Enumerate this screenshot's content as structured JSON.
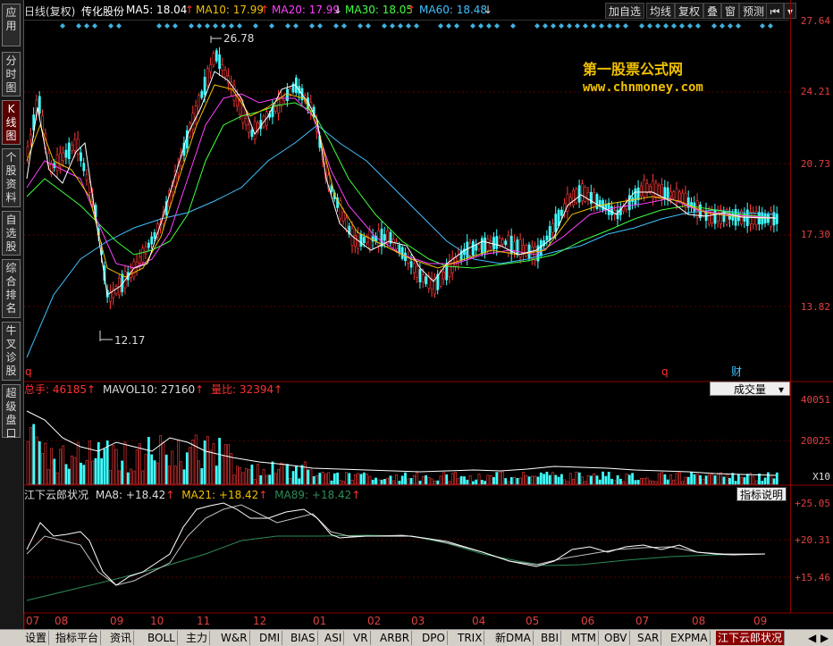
{
  "sidebar": {
    "items": [
      {
        "label": "应用",
        "active": false
      },
      {
        "label": "分时图",
        "active": false
      },
      {
        "label": "K线图",
        "active": true
      },
      {
        "label": "个股资料",
        "active": false
      },
      {
        "label": "自选股",
        "active": false
      },
      {
        "label": "综合排名",
        "active": false
      },
      {
        "label": "牛叉诊股",
        "active": false
      },
      {
        "label": "超级盘口",
        "active": false
      }
    ]
  },
  "header": {
    "chart_mode": "日线(复权)",
    "stock_name": "传化股份",
    "ma5": "MA5: 18.04",
    "ma10": "MA10: 17.99",
    "ma20": "MA20: 17.99",
    "ma30": "MA30: 18.05",
    "ma60": "MA60: 18.48",
    "buttons": [
      "加自选",
      "均线",
      "复权",
      "叠",
      "窗",
      "预测"
    ],
    "colors": {
      "ma5": "#ffffff",
      "ma10": "#f0c000",
      "ma20": "#ff40ff",
      "ma30": "#40ff40",
      "ma60": "#40c0ff",
      "up_arrow": "#ff3030"
    }
  },
  "price_axis": [
    "27.64",
    "24.21",
    "20.73",
    "17.30",
    "13.82"
  ],
  "price_annotations": {
    "high": "26.78",
    "low": "12.17"
  },
  "markers": {
    "q1": "q",
    "q2": "q",
    "cai": "财"
  },
  "watermark": {
    "line1": "第一股票公式网",
    "line2": "www.chnmoney.com"
  },
  "volume_panel": {
    "total": "总手: 46185",
    "mavol10": "MAVOL10: 27160",
    "liangbi": "量比: 32394",
    "dropdown": "成交量",
    "axis": [
      "40051",
      "20025"
    ],
    "unit": "X10"
  },
  "indicator_panel": {
    "name": "江下云郎状况",
    "ma8": "MA8: +18.42",
    "ma21": "MA21: +18.42",
    "ma89": "MA89: +18.42",
    "help_button": "指标说明",
    "axis": [
      "+25.05",
      "+20.31",
      "+15.46"
    ]
  },
  "months": [
    "07",
    "08",
    "09",
    "10",
    "11",
    "12",
    "01",
    "02",
    "03",
    "04",
    "05",
    "06",
    "07",
    "08",
    "09"
  ],
  "bottom_tabs": [
    "设置",
    "指标平台",
    "资讯",
    "BOLL",
    "主力",
    "W&R",
    "DMI",
    "BIAS",
    "ASI",
    "VR",
    "ARBR",
    "DPO",
    "TRIX",
    "新DMA",
    "BBI",
    "MTM",
    "OBV",
    "SAR",
    "EXPMA",
    "江下云郎状况"
  ]
}
